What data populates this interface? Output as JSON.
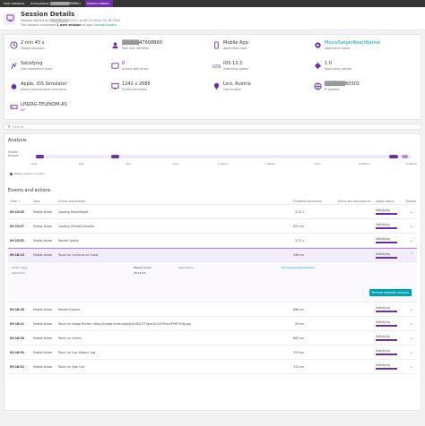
{
  "breadcrumb": [
    "User sessions",
    "Anonymous (▒▒▒▒▒▒▒▒9B660)",
    "Session details"
  ],
  "header": {
    "title": "Session Details",
    "started_prefix": "Session started by ",
    "user_masked": "▒▒▒▒▒▒▒▒9B660",
    "started_suffix": " at 09:15:40 on 02-18-2020",
    "consumed_prefix": "This session consumed ",
    "consumed_bold": "1 user session",
    "consumed_mid": " of your ",
    "consumed_link": "licensed quota"
  },
  "kpis": [
    {
      "icon": "clock-icon",
      "value": "2 min 45 s",
      "label": "Session duration"
    },
    {
      "icon": "user-icon",
      "value": "▒▒▒▒▒47608B60",
      "label": "Real user identifier"
    },
    {
      "icon": "app-icon",
      "value": "Mobile App",
      "label": "Application type"
    },
    {
      "icon": "link-app-icon",
      "value": "MovieSwiperReactNative",
      "label": "Application name",
      "link": true
    },
    {
      "icon": "smiley-icon",
      "value": "Satisfying",
      "label": "User experience score"
    },
    {
      "icon": "actions-icon",
      "value": "0",
      "label": "Actions with errors"
    },
    {
      "icon": "ios-icon",
      "value": "iOS 13.3",
      "label": "Operating system"
    },
    {
      "icon": "version-icon",
      "value": "1.0",
      "label": "Application version"
    },
    {
      "icon": "apple-icon",
      "value": "Apple, iOS Simulator",
      "label": "Device manufacturer and name"
    },
    {
      "icon": "screen-icon",
      "value": "1242 x 2688",
      "label": "Screen resolution"
    },
    {
      "icon": "location-icon",
      "value": "Linz, Austria",
      "label": "Geo location"
    },
    {
      "icon": "network-icon",
      "value": "▒▒▒▒▒▒60302",
      "label": "IP address"
    },
    {
      "icon": "isp-icon",
      "value": "LINZAG-TELEKOM-AS",
      "label": "ISP"
    }
  ],
  "filter": {
    "placeholder": "Filter by"
  },
  "analysis": {
    "title": "Analysis",
    "timeline_label": "Mobile actions",
    "ticks": [
      "0ms",
      "20s",
      "40s",
      "1min",
      "1.20min",
      "1.40min",
      "2min",
      "2.20min",
      "2.40min"
    ],
    "legend": "Mobile action or event"
  },
  "events": {
    "title": "Events and actions",
    "columns": [
      "Time ↑",
      "Type",
      "Events and Actions",
      "Duration",
      "Conversion",
      "Errors and annoyances",
      "Apdex rating",
      "Details"
    ],
    "rows": [
      {
        "time": "09:15:45",
        "type": "Mobile Action",
        "name": "Loading MovieSwiper",
        "duration": "3.22 s",
        "apdex": "Satisfying"
      },
      {
        "time": "09:15:47",
        "type": "Mobile Action",
        "name": "Loading UIViewController",
        "duration": "852 ms",
        "apdex": "Satisfying"
      },
      {
        "time": "09:15:53",
        "type": "Mobile Action",
        "name": "Render Splash",
        "duration": "3.22 s",
        "apdex": "Satisfying"
      },
      {
        "time": "09:16:15",
        "type": "Mobile Action",
        "name": "Touch on Continue as Guest",
        "duration": "346 ms",
        "apdex": "Satisfying",
        "selected": true
      }
    ],
    "detail": {
      "action_type_label": "Action Type",
      "action_type": "Mobile Action",
      "start_time_label": "Start time",
      "start_time": "09:16:15",
      "application_label": "Application",
      "application": "MovieSwiperReactNative",
      "waterfall_button": "Perform waterfall analysis"
    },
    "rows_after": [
      {
        "time": "09:16:16",
        "type": "Mobile Action",
        "name": "Render Explore",
        "duration": "898 ms",
        "apdex": "Satisfying"
      },
      {
        "time": "09:16:21",
        "type": "Mobile Action",
        "name": "Touch on Image Button: https://image.tmdb.org/t/p/w185/7f7Tgdc2rlQuT6Fpn4YPWTh5Jg.jpg",
        "duration": "93 ms",
        "apdex": "Satisfying"
      },
      {
        "time": "09:16:26",
        "type": "Mobile Action",
        "name": "Touch on Library",
        "duration": "863 ms",
        "apdex": "Satisfying"
      },
      {
        "time": "09:16:30",
        "type": "Mobile Action",
        "name": "Touch on Icon Button: cog",
        "duration": "323 ms",
        "apdex": "Satisfying"
      },
      {
        "time": "09:16:32",
        "type": "Mobile Action",
        "name": "Touch on Sign Out",
        "duration": "312 ms",
        "apdex": "Satisfying"
      }
    ]
  },
  "colors": {
    "accent": "#6f2da8",
    "link": "#00a1b2",
    "dark": "#353535"
  }
}
